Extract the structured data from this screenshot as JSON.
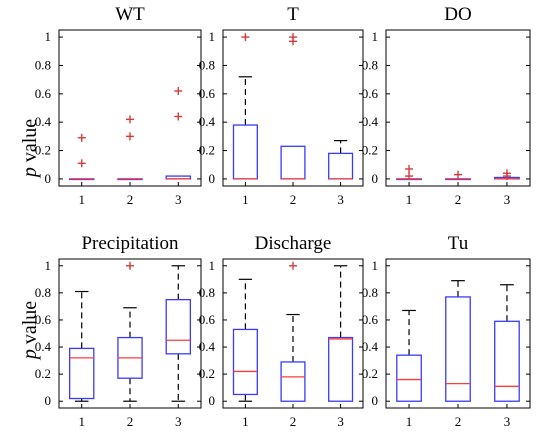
{
  "ylabel_symbol": "p",
  "ylabel_text": " value",
  "chart_data": [
    {
      "type": "box",
      "title": "WT",
      "categories": [
        "1",
        "2",
        "3"
      ],
      "ylim": [
        -0.05,
        1.05
      ],
      "yticks": [
        "0",
        "0.2",
        "0.4",
        "0.6",
        "0.8",
        "1"
      ],
      "boxes": [
        {
          "min": 0,
          "q1": 0,
          "median": 0,
          "q3": 0,
          "max": 0
        },
        {
          "min": 0,
          "q1": 0,
          "median": 0,
          "q3": 0,
          "max": 0
        },
        {
          "min": 0,
          "q1": 0,
          "median": 0,
          "q3": 0.02,
          "max": 0.02
        }
      ],
      "outliers": [
        [
          0.29,
          0.11
        ],
        [
          0.42,
          0.3
        ],
        [
          0.62,
          0.44
        ]
      ]
    },
    {
      "type": "box",
      "title": "T",
      "categories": [
        "1",
        "2",
        "3"
      ],
      "ylim": [
        -0.05,
        1.05
      ],
      "yticks": [
        "0",
        "0.2",
        "0.4",
        "0.6",
        "0.8",
        "1"
      ],
      "boxes": [
        {
          "min": 0,
          "q1": 0,
          "median": 0,
          "q3": 0.38,
          "max": 0.72
        },
        {
          "min": 0,
          "q1": 0,
          "median": 0,
          "q3": 0.23,
          "max": 0.23
        },
        {
          "min": 0,
          "q1": 0,
          "median": 0,
          "q3": 0.18,
          "max": 0.27
        }
      ],
      "outliers": [
        [
          1.0
        ],
        [
          1.0,
          0.97
        ],
        []
      ]
    },
    {
      "type": "box",
      "title": "DO",
      "categories": [
        "1",
        "2",
        "3"
      ],
      "ylim": [
        -0.05,
        1.05
      ],
      "yticks": [
        "0",
        "0.2",
        "0.4",
        "0.6",
        "0.8",
        "1"
      ],
      "boxes": [
        {
          "min": 0,
          "q1": 0,
          "median": 0,
          "q3": 0,
          "max": 0
        },
        {
          "min": 0,
          "q1": 0,
          "median": 0,
          "q3": 0,
          "max": 0
        },
        {
          "min": 0,
          "q1": 0,
          "median": 0,
          "q3": 0.01,
          "max": 0.01
        }
      ],
      "outliers": [
        [
          0.07,
          0.02
        ],
        [
          0.03
        ],
        [
          0.04,
          0.02
        ]
      ]
    },
    {
      "type": "box",
      "title": "Precipitation",
      "categories": [
        "1",
        "2",
        "3"
      ],
      "ylim": [
        -0.05,
        1.05
      ],
      "yticks": [
        "0",
        "0.2",
        "0.4",
        "0.6",
        "0.8",
        "1"
      ],
      "boxes": [
        {
          "min": 0,
          "q1": 0.02,
          "median": 0.32,
          "q3": 0.39,
          "max": 0.81
        },
        {
          "min": 0,
          "q1": 0.17,
          "median": 0.32,
          "q3": 0.47,
          "max": 0.69
        },
        {
          "min": 0,
          "q1": 0.35,
          "median": 0.45,
          "q3": 0.75,
          "max": 1.0
        }
      ],
      "outliers": [
        [],
        [
          1.0
        ],
        []
      ]
    },
    {
      "type": "box",
      "title": "Discharge",
      "categories": [
        "1",
        "2",
        "3"
      ],
      "ylim": [
        -0.05,
        1.05
      ],
      "yticks": [
        "0",
        "0.2",
        "0.4",
        "0.6",
        "0.8",
        "1"
      ],
      "boxes": [
        {
          "min": 0,
          "q1": 0.05,
          "median": 0.22,
          "q3": 0.53,
          "max": 0.9
        },
        {
          "min": 0,
          "q1": 0,
          "median": 0.18,
          "q3": 0.29,
          "max": 0.64
        },
        {
          "min": 0,
          "q1": 0,
          "median": 0.46,
          "q3": 0.47,
          "max": 1.0
        }
      ],
      "outliers": [
        [],
        [
          1.0
        ],
        []
      ]
    },
    {
      "type": "box",
      "title": "Tu",
      "categories": [
        "1",
        "2",
        "3"
      ],
      "ylim": [
        -0.05,
        1.05
      ],
      "yticks": [
        "0",
        "0.2",
        "0.4",
        "0.6",
        "0.8",
        "1"
      ],
      "boxes": [
        {
          "min": 0,
          "q1": 0,
          "median": 0.16,
          "q3": 0.34,
          "max": 0.67
        },
        {
          "min": 0,
          "q1": 0,
          "median": 0.13,
          "q3": 0.77,
          "max": 0.89
        },
        {
          "min": 0,
          "q1": 0,
          "median": 0.11,
          "q3": 0.59,
          "max": 0.86
        }
      ],
      "outliers": [
        [],
        [],
        []
      ]
    }
  ]
}
